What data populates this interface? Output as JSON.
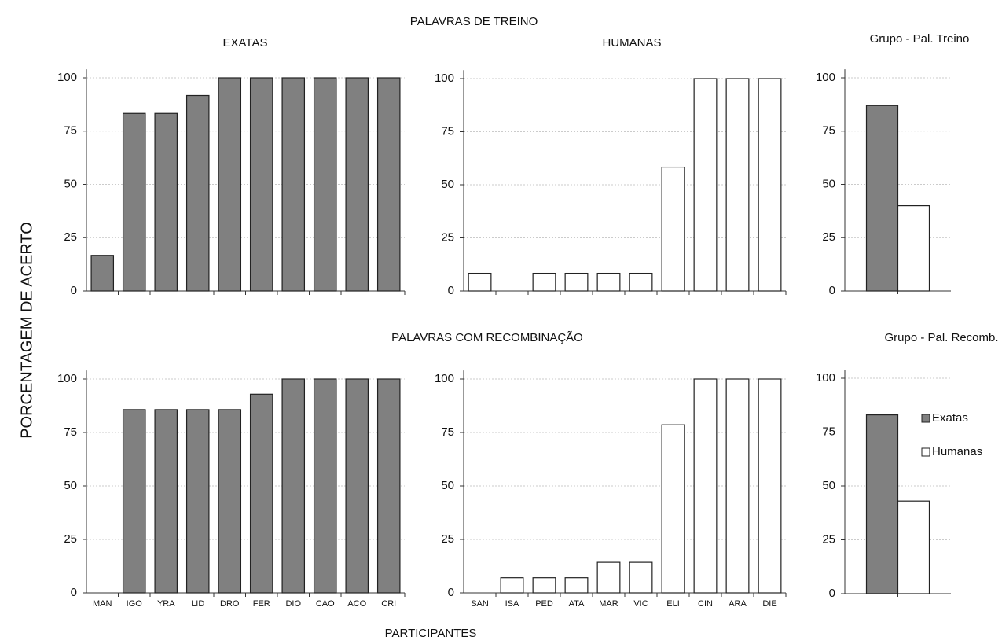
{
  "titles": [
    "PALAVRAS DE TREINO",
    "PALAVRAS COM RECOMBINAÇÃO"
  ],
  "ylabel": "PORCENTAGEM DE ACERTO",
  "xlabel": "PARTICIPANTES",
  "chart_data": [
    {
      "type": "bar",
      "title": "EXATAS",
      "categories": [
        null,
        null,
        null,
        null,
        null,
        null,
        null,
        null,
        null,
        null
      ],
      "values": [
        16.7,
        83.3,
        83.3,
        91.7,
        100,
        100,
        100,
        100,
        100,
        100
      ],
      "color": "#808080",
      "ylim": [
        0,
        104
      ],
      "yticks": [
        0,
        25,
        50,
        75,
        100
      ],
      "grid": true
    },
    {
      "type": "bar",
      "title": "HUMANAS",
      "categories": [
        null,
        null,
        null,
        null,
        null,
        null,
        null,
        null,
        null,
        null
      ],
      "values": [
        8.3,
        0,
        8.3,
        8.3,
        8.3,
        8.3,
        58.3,
        100,
        100,
        100
      ],
      "color": "#ffffff",
      "ylim": [
        0,
        104
      ],
      "yticks": [
        0,
        25,
        50,
        75,
        100
      ],
      "grid": true
    },
    {
      "type": "grouped_bar",
      "title": "Grupo - Pal. Treino",
      "categories": [
        null
      ],
      "series": [
        {
          "color": "#808080",
          "values": [
            87
          ]
        },
        {
          "color": "#ffffff",
          "values": [
            40
          ]
        }
      ],
      "ylim": [
        0,
        104
      ],
      "yticks": [
        0,
        25,
        50,
        75,
        100
      ],
      "grid": true
    },
    {
      "type": "bar",
      "categories": [
        "MAN",
        "IGO",
        "YRA",
        "LID",
        "DRO",
        "FER",
        "DIO",
        "CAO",
        "ACO",
        "CRI"
      ],
      "values": [
        0,
        85.7,
        85.7,
        85.7,
        85.7,
        92.9,
        100,
        100,
        100,
        100
      ],
      "color": "#808080",
      "ylim": [
        0,
        104
      ],
      "yticks": [
        0,
        25,
        50,
        75,
        100
      ],
      "grid": true
    },
    {
      "type": "bar",
      "categories": [
        "SAN",
        "ISA",
        "PED",
        "ATA",
        "MAR",
        "VIC",
        "ELI",
        "CIN",
        "ARA",
        "DIE"
      ],
      "values": [
        0,
        7.1,
        7.1,
        7.1,
        14.3,
        14.3,
        78.6,
        100,
        100,
        100
      ],
      "color": "#ffffff",
      "ylim": [
        0,
        104
      ],
      "yticks": [
        0,
        25,
        50,
        75,
        100
      ],
      "grid": true
    },
    {
      "type": "grouped_bar",
      "title": "Grupo - Pal. Recomb.",
      "categories": [
        null
      ],
      "series": [
        {
          "name": "Exatas",
          "color": "#808080",
          "values": [
            83
          ]
        },
        {
          "name": "Humanas",
          "color": "#ffffff",
          "values": [
            43
          ]
        }
      ],
      "ylim": [
        0,
        104
      ],
      "yticks": [
        0,
        25,
        50,
        75,
        100
      ],
      "grid": true,
      "legend": "right"
    }
  ]
}
